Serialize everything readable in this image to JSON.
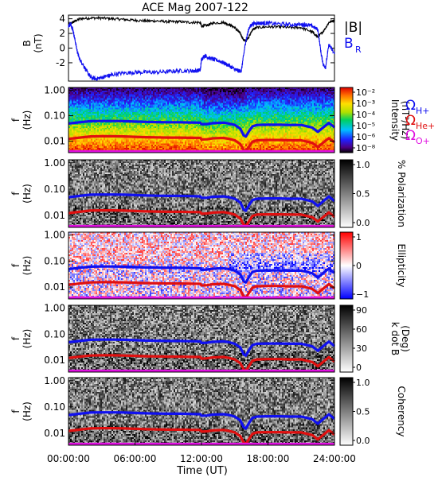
{
  "chart_data": {
    "type": "spectrogram",
    "title": "ACE Mag 2007-122",
    "xlabel": "Time (UT)",
    "xticks": [
      "00:00:00",
      "06:00:00",
      "12:00:00",
      "18:00:00",
      "24:00:00"
    ],
    "xlim": [
      "00:00:00",
      "24:00:00"
    ],
    "panels": [
      {
        "type": "line",
        "ylabel": "B",
        "yunit": "(nT)",
        "ylim": [
          -4.5,
          4.5
        ],
        "yticks": [
          "4",
          "2",
          "0",
          "-2"
        ],
        "legend": [
          "|B|",
          "B"
        ],
        "legend_sub": [
          "",
          "R"
        ],
        "series": [
          {
            "name": "|B|",
            "color": "#000000",
            "x": [
              0,
              0.5,
              1,
              2,
              3,
              4,
              5,
              6,
              7,
              8,
              9,
              10,
              11,
              11.9,
              12,
              12.5,
              13,
              14,
              14.5,
              15,
              15.5,
              15.8,
              16,
              16.3,
              16.6,
              17,
              18,
              19,
              20,
              21,
              22,
              22.5,
              23,
              23.5,
              24
            ],
            "y": [
              3.2,
              3.6,
              4.0,
              4.1,
              4.1,
              4.0,
              3.9,
              3.8,
              3.7,
              3.7,
              3.6,
              3.6,
              3.5,
              3.5,
              3.0,
              3.1,
              3.4,
              3.5,
              3.2,
              2.8,
              2.0,
              1.1,
              1.0,
              1.6,
              2.5,
              2.8,
              2.9,
              2.9,
              2.8,
              2.8,
              2.2,
              1.5,
              2.3,
              3.5,
              3.8
            ]
          },
          {
            "name": "B",
            "color": "#1010f0",
            "x": [
              0,
              0.2,
              0.4,
              0.6,
              0.8,
              1,
              1.3,
              1.7,
              2,
              2.5,
              3,
              3.5,
              4,
              5,
              6,
              7,
              8,
              9,
              10,
              11,
              11.5,
              11.9,
              12,
              12.3,
              12.6,
              13,
              13.5,
              14,
              14.5,
              15,
              15.3,
              15.6,
              15.8,
              16,
              16.3,
              16.6,
              17,
              17.5,
              18,
              19,
              20,
              21,
              21.5,
              22,
              22.5,
              22.8,
              23,
              23.2,
              23.5,
              24
            ],
            "y": [
              3.0,
              3.3,
              2.5,
              1.0,
              -0.5,
              -1.5,
              -2.2,
              -3.3,
              -4.0,
              -4.2,
              -4.0,
              -3.8,
              -3.6,
              -3.4,
              -3.3,
              -3.3,
              -3.3,
              -3.2,
              -3.1,
              -3.1,
              -3.1,
              -3.0,
              -1.5,
              -1.0,
              -1.3,
              -1.5,
              -1.7,
              -2.0,
              -2.4,
              -2.9,
              -3.1,
              -3.1,
              -1.0,
              1.0,
              2.8,
              3.3,
              3.4,
              3.4,
              3.4,
              3.3,
              3.2,
              3.2,
              3.2,
              3.0,
              2.5,
              -0.8,
              -2.3,
              -2.6,
              0.5,
              -0.8
            ]
          }
        ]
      },
      {
        "type": "heatmap",
        "ylabel": "f",
        "yunit": "(Hz)",
        "colorbar_label": "Intensity",
        "colorbar_unit": "(nT²/Hz)",
        "colorbar_ticks": [
          "10⁻²",
          "10⁻³",
          "10⁻⁴",
          "10⁻⁵",
          "10⁻⁶",
          "10⁻⁸"
        ],
        "colormap": "rainbow",
        "legend": [
          {
            "label": "Ω",
            "sub": "H+",
            "color": "#1010f0"
          },
          {
            "label": "Ω",
            "sub": "He+",
            "color": "#e01010"
          },
          {
            "label": "Ω",
            "sub": "O+",
            "color": "#e010e0"
          }
        ]
      },
      {
        "type": "heatmap",
        "ylabel": "f",
        "yunit": "(Hz)",
        "colorbar_label": "% Polarization",
        "colorbar_unit": "",
        "colorbar_ticks": [
          "1.0",
          "0.5",
          "0.0"
        ],
        "colormap": "gray"
      },
      {
        "type": "heatmap",
        "ylabel": "f",
        "yunit": "(Hz)",
        "colorbar_label": "Ellipticity",
        "colorbar_unit": "",
        "colorbar_ticks": [
          "1",
          "0",
          "−1"
        ],
        "colormap": "bwr"
      },
      {
        "type": "heatmap",
        "ylabel": "f",
        "yunit": "(Hz)",
        "colorbar_label": "k dot B",
        "colorbar_unit": "(Deg)",
        "colorbar_ticks": [
          "90",
          "60",
          "30",
          "0"
        ],
        "colormap": "gray"
      },
      {
        "type": "heatmap",
        "ylabel": "f",
        "yunit": "(Hz)",
        "colorbar_label": "Coherency",
        "colorbar_unit": "",
        "colorbar_ticks": [
          "1.0",
          "0.5",
          "0.0"
        ],
        "colormap": "gray"
      }
    ],
    "freq_yticks": [
      "1.00",
      "0.10",
      "0.01"
    ],
    "freq_ylim": [
      0.0035,
      1.3
    ],
    "gyrofrequency_lines": [
      {
        "name": "H+",
        "color": "#1010f0",
        "x": [
          0,
          1,
          2,
          3,
          4,
          5,
          6,
          7,
          8,
          9,
          10,
          11,
          11.9,
          12,
          12.5,
          13,
          14,
          14.5,
          15,
          15.5,
          15.8,
          16,
          16.3,
          16.6,
          17,
          18,
          19,
          20,
          21,
          22,
          22.5,
          23,
          23.5,
          24
        ],
        "y": [
          0.049,
          0.055,
          0.061,
          0.062,
          0.062,
          0.061,
          0.059,
          0.057,
          0.056,
          0.055,
          0.055,
          0.054,
          0.053,
          0.046,
          0.047,
          0.051,
          0.053,
          0.049,
          0.043,
          0.031,
          0.017,
          0.015,
          0.025,
          0.038,
          0.043,
          0.044,
          0.044,
          0.043,
          0.043,
          0.034,
          0.023,
          0.035,
          0.052,
          0.035
        ]
      },
      {
        "name": "He+",
        "color": "#e01010",
        "x": [
          0,
          1,
          2,
          3,
          4,
          5,
          6,
          7,
          8,
          9,
          10,
          11,
          11.9,
          12,
          12.5,
          13,
          14,
          14.5,
          15,
          15.5,
          15.8,
          16,
          16.3,
          16.6,
          17,
          18,
          19,
          20,
          21,
          22,
          22.5,
          23,
          23.5,
          24
        ],
        "y": [
          0.0122,
          0.0137,
          0.0152,
          0.0155,
          0.0155,
          0.0152,
          0.0147,
          0.0142,
          0.014,
          0.0137,
          0.0137,
          0.0134,
          0.0133,
          0.0115,
          0.0118,
          0.0128,
          0.0133,
          0.0122,
          0.0107,
          0.0077,
          0.0045,
          0.0038,
          0.0061,
          0.0095,
          0.0107,
          0.011,
          0.011,
          0.0107,
          0.0107,
          0.0085,
          0.0058,
          0.0088,
          0.013,
          0.0088
        ]
      },
      {
        "name": "O+",
        "color": "#e010e0",
        "x": [
          0,
          1,
          2,
          3,
          4,
          5,
          6,
          7,
          8,
          9,
          10,
          11,
          11.9,
          12,
          12.5,
          13,
          14,
          14.5,
          15,
          15.5,
          15.8,
          16,
          16.3,
          16.6,
          17,
          18,
          19,
          20,
          21,
          22,
          22.5,
          23,
          23.5,
          24
        ],
        "y": [
          0.0031,
          0.0034,
          0.0038,
          0.0039,
          0.0039,
          0.0038,
          0.0037,
          0.0036,
          0.0035,
          0.0034,
          0.0034,
          0.0034,
          0.0033,
          0.0029,
          0.003,
          0.0032,
          0.0033,
          0.0031,
          0.0027,
          0.0019,
          0.0011,
          0.0009,
          0.0015,
          0.0024,
          0.0027,
          0.0028,
          0.0028,
          0.0027,
          0.0027,
          0.0021,
          0.0014,
          0.0022,
          0.0033,
          0.0022
        ]
      }
    ]
  }
}
